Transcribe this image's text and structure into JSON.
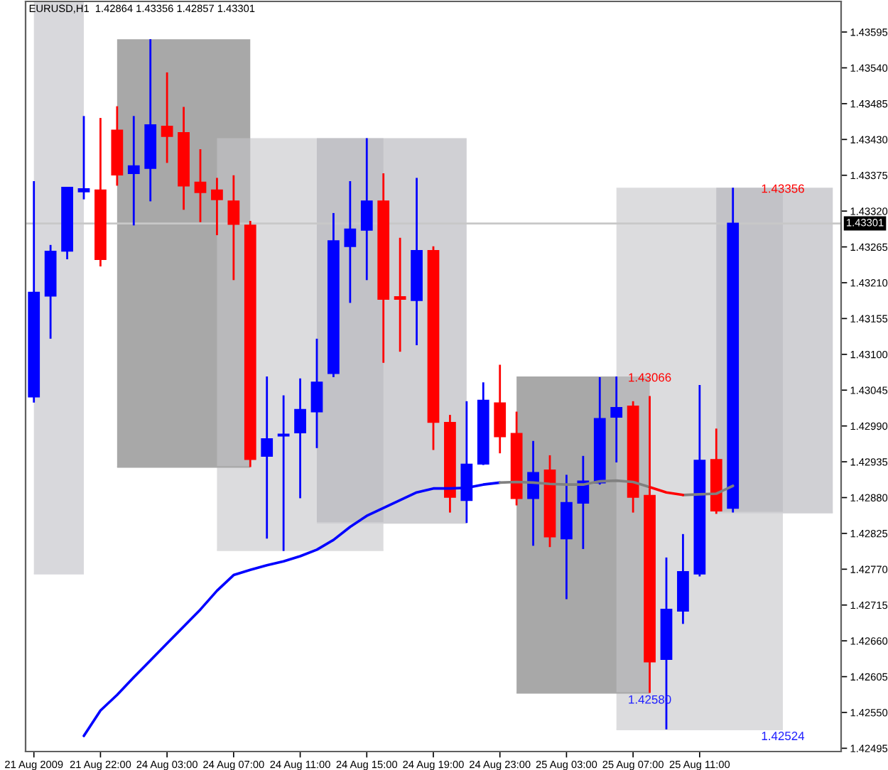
{
  "chart_data": {
    "type": "candlestick",
    "title": "EURUSD,H1  1.42864 1.43356 1.42857 1.43301",
    "categories": [
      "21 Aug 2009",
      null,
      null,
      null,
      "21 Aug 22:00",
      null,
      null,
      null,
      "24 Aug 03:00",
      null,
      null,
      null,
      "24 Aug 07:00",
      null,
      null,
      null,
      "24 Aug 11:00",
      null,
      null,
      null,
      "24 Aug 15:00",
      null,
      null,
      null,
      "24 Aug 19:00",
      null,
      null,
      null,
      "24 Aug 23:00",
      null,
      null,
      null,
      "25 Aug 03:00",
      null,
      null,
      null,
      "25 Aug 07:00",
      null,
      null,
      null,
      "25 Aug 11:00",
      null,
      null,
      null,
      null,
      null,
      null,
      null,
      null
    ],
    "ohlc": [
      [
        1.43035,
        1.43366,
        1.43026,
        1.43195
      ],
      [
        1.4319,
        1.43268,
        1.43124,
        1.43258
      ],
      [
        1.43259,
        1.43356,
        1.43246,
        1.43356
      ],
      [
        1.4335,
        1.43466,
        1.43338,
        1.43354
      ],
      [
        1.43352,
        1.43463,
        1.43235,
        1.43246
      ],
      [
        1.43444,
        1.43481,
        1.43359,
        1.43376
      ],
      [
        1.43378,
        1.43466,
        1.43298,
        1.43389
      ],
      [
        1.43386,
        1.43584,
        1.43335,
        1.43452
      ],
      [
        1.4345,
        1.43533,
        1.43394,
        1.43435
      ],
      [
        1.4344,
        1.4348,
        1.43322,
        1.43359
      ],
      [
        1.43364,
        1.43415,
        1.43303,
        1.43349
      ],
      [
        1.43352,
        1.43371,
        1.43283,
        1.43338
      ],
      [
        1.43335,
        1.43375,
        1.43214,
        1.433
      ],
      [
        1.43298,
        1.43305,
        1.42927,
        1.42939
      ],
      [
        1.42944,
        1.43066,
        1.42817,
        1.4297
      ],
      [
        1.42975,
        1.43037,
        1.42798,
        1.42977
      ],
      [
        1.4298,
        1.43063,
        1.42879,
        1.43015
      ],
      [
        1.43012,
        1.43124,
        1.42956,
        1.43057
      ],
      [
        1.43071,
        1.43317,
        1.43065,
        1.43274
      ],
      [
        1.43266,
        1.43366,
        1.43179,
        1.43292
      ],
      [
        1.43291,
        1.43432,
        1.43214,
        1.43335
      ],
      [
        1.43335,
        1.43378,
        1.43087,
        1.43185
      ],
      [
        1.43188,
        1.43279,
        1.43104,
        1.43185
      ],
      [
        1.43183,
        1.43371,
        1.43114,
        1.43259
      ],
      [
        1.43259,
        1.43266,
        1.42953,
        1.42996
      ],
      [
        1.42995,
        1.43007,
        1.42857,
        1.42881
      ],
      [
        1.42876,
        1.43028,
        1.42841,
        1.42931
      ],
      [
        1.42932,
        1.43057,
        1.4293,
        1.43029
      ],
      [
        1.43025,
        1.43084,
        1.42948,
        1.42974
      ],
      [
        1.42978,
        1.43012,
        1.42868,
        1.42879
      ],
      [
        1.42879,
        1.42967,
        1.42806,
        1.42918
      ],
      [
        1.42922,
        1.42945,
        1.42804,
        1.4282
      ],
      [
        1.42817,
        1.42915,
        1.42724,
        1.42872
      ],
      [
        1.42872,
        1.42944,
        1.42801,
        1.42905
      ],
      [
        1.42903,
        1.43065,
        1.429,
        1.43001
      ],
      [
        1.43004,
        1.43066,
        1.42934,
        1.43018
      ],
      [
        1.4302,
        1.43028,
        1.42857,
        1.42881
      ],
      [
        1.42883,
        1.43036,
        1.4258,
        1.42628
      ],
      [
        1.42632,
        1.42788,
        1.42524,
        1.42708
      ],
      [
        1.42706,
        1.42824,
        1.42686,
        1.42766
      ],
      [
        1.42763,
        1.43053,
        1.42759,
        1.42937
      ],
      [
        1.42938,
        1.42986,
        1.42855,
        1.4286
      ],
      [
        1.42864,
        1.43356,
        1.42857,
        1.43301
      ],
      null,
      null,
      null,
      null,
      null,
      null
    ],
    "colors": [
      "#0000ff",
      "#0000ff",
      "#0000ff",
      "#0000ff",
      "#ff0000",
      "#ff0000",
      "#0000ff",
      "#0000ff",
      "#ff0000",
      "#ff0000",
      "#ff0000",
      "#ff0000",
      "#ff0000",
      "#ff0000",
      "#0000ff",
      "#0000ff",
      "#0000ff",
      "#0000ff",
      "#0000ff",
      "#0000ff",
      "#0000ff",
      "#ff0000",
      "#ff0000",
      "#0000ff",
      "#ff0000",
      "#ff0000",
      "#0000ff",
      "#0000ff",
      "#ff0000",
      "#ff0000",
      "#0000ff",
      "#ff0000",
      "#0000ff",
      "#0000ff",
      "#0000ff",
      "#0000ff",
      "#ff0000",
      "#ff0000",
      "#0000ff",
      "#0000ff",
      "#0000ff",
      "#ff0000",
      "#0000ff",
      null,
      null,
      null,
      null,
      null,
      null
    ],
    "series": [
      {
        "type": "line",
        "color": "#d8d8dc",
        "values": [
          1.42763,
          1.42763,
          1.42763,
          1.42763,
          null,
          null,
          null,
          null,
          null,
          null,
          null,
          null,
          null,
          null,
          null,
          null,
          null,
          null,
          null,
          null,
          null,
          null,
          null,
          null,
          null,
          null,
          null,
          null,
          null,
          null,
          null,
          null,
          null,
          null,
          null,
          null,
          null,
          null,
          null,
          null,
          null,
          null,
          null,
          null,
          null,
          null,
          null,
          null,
          null
        ],
        "upper": [
          1.43642,
          1.43642,
          1.43642,
          1.43642,
          null,
          null,
          null,
          null,
          null,
          null,
          null,
          null,
          null,
          null,
          null,
          null,
          null,
          null,
          null,
          null,
          null,
          null,
          null,
          null,
          null,
          null,
          null,
          null,
          null,
          null,
          null,
          null,
          null,
          null,
          null,
          null,
          null,
          null,
          null,
          null,
          null,
          null,
          null,
          null,
          null,
          null,
          null,
          null,
          null
        ],
        "lower": [
          1.42763,
          1.42763,
          1.42763,
          1.42763,
          null,
          null,
          null,
          null,
          null,
          null,
          null,
          null,
          null,
          null,
          null,
          null,
          null,
          null,
          null,
          null,
          null,
          null,
          null,
          null,
          null,
          null,
          null,
          null,
          null,
          null,
          null,
          null,
          null,
          null,
          null,
          null,
          null,
          null,
          null,
          null,
          null,
          null,
          null,
          null,
          null,
          null,
          null,
          null,
          null
        ]
      },
      {
        "type": "line",
        "color": "#a8a8a8",
        "values": [
          null,
          null,
          null,
          null,
          null,
          1.42927,
          1.42927,
          1.42927,
          1.42927,
          1.42927,
          1.42927,
          1.42927,
          1.42927,
          1.42927,
          null,
          null,
          null,
          null,
          null,
          null,
          null,
          null,
          null,
          null,
          null,
          null,
          null,
          null,
          null,
          null,
          null,
          null,
          null,
          null,
          null,
          null,
          null,
          null,
          null,
          null,
          null,
          null,
          null,
          null,
          null,
          null,
          null,
          null,
          null
        ],
        "upper": [
          null,
          null,
          null,
          null,
          null,
          1.43584,
          1.43584,
          1.43584,
          1.43584,
          1.43584,
          1.43584,
          1.43584,
          1.43584,
          1.43584,
          null,
          null,
          null,
          null,
          null,
          null,
          null,
          null,
          null,
          null,
          null,
          null,
          null,
          null,
          null,
          null,
          null,
          null,
          null,
          null,
          null,
          null,
          null,
          null,
          null,
          null,
          null,
          null,
          null,
          null,
          null,
          null,
          null,
          null,
          null
        ],
        "lower": [
          null,
          null,
          null,
          null,
          null,
          1.42927,
          1.42927,
          1.42927,
          1.42927,
          1.42927,
          1.42927,
          1.42927,
          1.42927,
          1.42927,
          null,
          null,
          null,
          null,
          null,
          null,
          null,
          null,
          null,
          null,
          null,
          null,
          null,
          null,
          null,
          null,
          null,
          null,
          null,
          null,
          null,
          null,
          null,
          null,
          null,
          null,
          null,
          null,
          null,
          null,
          null,
          null,
          null,
          null,
          null
        ]
      },
      {
        "type": "line",
        "color": "#dcdcde",
        "values": [
          null,
          null,
          null,
          null,
          null,
          null,
          null,
          null,
          null,
          null,
          null,
          1.42799,
          1.42799,
          1.42799,
          1.42799,
          1.42799,
          1.42799,
          1.42799,
          1.42799,
          1.42799,
          1.42799,
          1.42799,
          null,
          null,
          null,
          null,
          null,
          null,
          null,
          null,
          null,
          null,
          null,
          null,
          null,
          null,
          null,
          null,
          null,
          null,
          null,
          null,
          null,
          null,
          null,
          null,
          null,
          null,
          null
        ],
        "upper": [
          null,
          null,
          null,
          null,
          null,
          null,
          null,
          null,
          null,
          null,
          null,
          1.43432,
          1.43432,
          1.43432,
          1.43432,
          1.43432,
          1.43432,
          1.43432,
          1.43432,
          1.43432,
          1.43432,
          1.43432,
          null,
          null,
          null,
          null,
          null,
          null,
          null,
          null,
          null,
          null,
          null,
          null,
          null,
          null,
          null,
          null,
          null,
          null,
          null,
          null,
          null,
          null,
          null,
          null,
          null,
          null,
          null
        ],
        "lower": [
          null,
          null,
          null,
          null,
          null,
          null,
          null,
          null,
          null,
          null,
          null,
          1.42799,
          1.42799,
          1.42799,
          1.42799,
          1.42799,
          1.42799,
          1.42799,
          1.42799,
          1.42799,
          1.42799,
          1.42799,
          null,
          null,
          null,
          null,
          null,
          null,
          null,
          null,
          null,
          null,
          null,
          null,
          null,
          null,
          null,
          null,
          null,
          null,
          null,
          null,
          null,
          null,
          null,
          null,
          null,
          null,
          null
        ]
      },
      {
        "type": "line",
        "color": "#d0d0d4",
        "values": [
          null,
          null,
          null,
          null,
          null,
          null,
          null,
          null,
          null,
          null,
          null,
          null,
          null,
          null,
          null,
          null,
          null,
          1.42841,
          1.42841,
          1.42841,
          1.42841,
          1.42841,
          1.42841,
          1.42841,
          1.42841,
          1.42841,
          1.42841,
          null,
          null,
          null,
          null,
          null,
          null,
          null,
          null,
          null,
          null,
          null,
          null,
          null,
          null,
          null,
          null,
          null,
          null,
          null,
          null,
          null,
          null
        ],
        "upper": [
          null,
          null,
          null,
          null,
          null,
          null,
          null,
          null,
          null,
          null,
          null,
          null,
          null,
          null,
          null,
          null,
          null,
          1.43432,
          1.43432,
          1.43432,
          1.43432,
          1.43432,
          1.43432,
          1.43432,
          1.43432,
          1.43432,
          1.43432,
          null,
          null,
          null,
          null,
          null,
          null,
          null,
          null,
          null,
          null,
          null,
          null,
          null,
          null,
          null,
          null,
          null,
          null,
          null,
          null,
          null,
          null
        ],
        "lower": [
          null,
          null,
          null,
          null,
          null,
          null,
          null,
          null,
          null,
          null,
          null,
          null,
          null,
          null,
          null,
          null,
          null,
          1.42841,
          1.42841,
          1.42841,
          1.42841,
          1.42841,
          1.42841,
          1.42841,
          1.42841,
          1.42841,
          1.42841,
          null,
          null,
          null,
          null,
          null,
          null,
          null,
          null,
          null,
          null,
          null,
          null,
          null,
          null,
          null,
          null,
          null,
          null,
          null,
          null,
          null,
          null
        ]
      },
      {
        "type": "line",
        "color": "#a8a8a8",
        "values": [
          null,
          null,
          null,
          null,
          null,
          null,
          null,
          null,
          null,
          null,
          null,
          null,
          null,
          null,
          null,
          null,
          null,
          null,
          null,
          null,
          null,
          null,
          null,
          null,
          null,
          null,
          null,
          null,
          null,
          1.4258,
          1.4258,
          1.4258,
          1.4258,
          1.4258,
          1.4258,
          1.4258,
          1.4258,
          1.4258,
          null,
          null,
          null,
          null,
          null,
          null,
          null,
          null,
          null,
          null,
          null
        ],
        "upper": [
          null,
          null,
          null,
          null,
          null,
          null,
          null,
          null,
          null,
          null,
          null,
          null,
          null,
          null,
          null,
          null,
          null,
          null,
          null,
          null,
          null,
          null,
          null,
          null,
          null,
          null,
          null,
          null,
          null,
          1.43066,
          1.43066,
          1.43066,
          1.43066,
          1.43066,
          1.43066,
          1.43066,
          1.43066,
          1.43066,
          null,
          null,
          null,
          null,
          null,
          null,
          null,
          null,
          null,
          null,
          null
        ],
        "lower": [
          null,
          null,
          null,
          null,
          null,
          null,
          null,
          null,
          null,
          null,
          null,
          null,
          null,
          null,
          null,
          null,
          null,
          null,
          null,
          null,
          null,
          null,
          null,
          null,
          null,
          null,
          null,
          null,
          null,
          1.4258,
          1.4258,
          1.4258,
          1.4258,
          1.4258,
          1.4258,
          1.4258,
          1.4258,
          1.4258,
          null,
          null,
          null,
          null,
          null,
          null,
          null,
          null,
          null,
          null,
          null
        ]
      },
      {
        "type": "line",
        "color": "#dcdcde",
        "values": [
          null,
          null,
          null,
          null,
          null,
          null,
          null,
          null,
          null,
          null,
          null,
          null,
          null,
          null,
          null,
          null,
          null,
          null,
          null,
          null,
          null,
          null,
          null,
          null,
          null,
          null,
          null,
          null,
          null,
          null,
          null,
          null,
          null,
          null,
          null,
          1.42524,
          1.42524,
          1.42524,
          1.42524,
          1.42524,
          1.42524,
          1.42524,
          1.42524,
          1.42524,
          1.42524,
          1.42524,
          null,
          null,
          null
        ],
        "upper": [
          null,
          null,
          null,
          null,
          null,
          null,
          null,
          null,
          null,
          null,
          null,
          null,
          null,
          null,
          null,
          null,
          null,
          null,
          null,
          null,
          null,
          null,
          null,
          null,
          null,
          null,
          null,
          null,
          null,
          null,
          null,
          null,
          null,
          null,
          null,
          1.43356,
          1.43356,
          1.43356,
          1.43356,
          1.43356,
          1.43356,
          1.43356,
          1.43356,
          1.43356,
          1.43356,
          1.43356,
          null,
          null,
          null
        ],
        "lower": [
          null,
          null,
          null,
          null,
          null,
          null,
          null,
          null,
          null,
          null,
          null,
          null,
          null,
          null,
          null,
          null,
          null,
          null,
          null,
          null,
          null,
          null,
          null,
          null,
          null,
          null,
          null,
          null,
          null,
          null,
          null,
          null,
          null,
          null,
          null,
          1.42524,
          1.42524,
          1.42524,
          1.42524,
          1.42524,
          1.42524,
          1.42524,
          1.42524,
          1.42524,
          1.42524,
          1.42524,
          null,
          null,
          null
        ]
      },
      {
        "type": "line",
        "color": "#d0d0d4",
        "values": [
          null,
          null,
          null,
          null,
          null,
          null,
          null,
          null,
          null,
          null,
          null,
          null,
          null,
          null,
          null,
          null,
          null,
          null,
          null,
          null,
          null,
          null,
          null,
          null,
          null,
          null,
          null,
          null,
          null,
          null,
          null,
          null,
          null,
          null,
          null,
          null,
          null,
          null,
          null,
          null,
          null,
          1.42857,
          1.42857,
          1.42857,
          1.42857,
          1.42857,
          1.42857,
          1.42857,
          1.42857
        ],
        "upper": [
          null,
          null,
          null,
          null,
          null,
          null,
          null,
          null,
          null,
          null,
          null,
          null,
          null,
          null,
          null,
          null,
          null,
          null,
          null,
          null,
          null,
          null,
          null,
          null,
          null,
          null,
          null,
          null,
          null,
          null,
          null,
          null,
          null,
          null,
          null,
          null,
          null,
          null,
          null,
          null,
          null,
          1.43356,
          1.43356,
          1.43356,
          1.43356,
          1.43356,
          1.43356,
          1.43356,
          1.43356
        ],
        "lower": [
          null,
          null,
          null,
          null,
          null,
          null,
          null,
          null,
          null,
          null,
          null,
          null,
          null,
          null,
          null,
          null,
          null,
          null,
          null,
          null,
          null,
          null,
          null,
          null,
          null,
          null,
          null,
          null,
          null,
          null,
          null,
          null,
          null,
          null,
          null,
          null,
          null,
          null,
          null,
          null,
          null,
          1.42857,
          1.42857,
          1.42857,
          1.42857,
          1.42857,
          1.42857,
          1.42857,
          1.42857
        ]
      },
      {
        "type": "line",
        "color": "#0000ff",
        "values": [
          null,
          null,
          null,
          1.42514,
          1.42553,
          1.42577,
          1.42604,
          1.4263,
          1.42656,
          1.42682,
          1.42708,
          1.42737,
          1.42761,
          1.42769,
          1.42776,
          1.42782,
          1.4279,
          1.428,
          1.42815,
          1.42835,
          1.42852,
          1.42864,
          1.42876,
          1.42888,
          1.42894,
          1.42894,
          1.42895,
          1.429,
          1.42903,
          null,
          null,
          null,
          null,
          null,
          null,
          null,
          null,
          null,
          null,
          null,
          null,
          null,
          null,
          null,
          null,
          null,
          null,
          null,
          null
        ]
      },
      {
        "type": "line",
        "color": "#808080",
        "values": [
          null,
          null,
          null,
          null,
          null,
          null,
          null,
          null,
          null,
          null,
          null,
          null,
          null,
          null,
          null,
          null,
          null,
          null,
          null,
          null,
          null,
          null,
          null,
          null,
          null,
          null,
          null,
          null,
          1.42903,
          1.42904,
          1.42903,
          1.42901,
          1.429,
          1.429,
          1.42905,
          1.42906,
          1.42904,
          1.42896,
          null,
          1.42884,
          1.42885,
          1.42886,
          1.42898,
          null,
          null,
          null,
          null,
          null,
          null
        ]
      },
      {
        "type": "line",
        "color": "#ff0000",
        "values": [
          null,
          null,
          null,
          null,
          null,
          null,
          null,
          null,
          null,
          null,
          null,
          null,
          null,
          null,
          null,
          null,
          null,
          null,
          null,
          null,
          null,
          null,
          null,
          null,
          null,
          null,
          null,
          null,
          null,
          null,
          null,
          null,
          null,
          null,
          null,
          null,
          null,
          1.42896,
          1.42888,
          1.42884,
          null,
          null,
          null,
          null,
          null,
          null,
          null,
          null,
          null
        ]
      }
    ],
    "ylim": [
      1.4249,
      1.43642
    ],
    "yticks": [
      1.42495,
      {
        "value": 1.4255,
        "label": "1.42550"
      },
      1.42605,
      {
        "value": 1.4266,
        "label": "1.42660"
      },
      1.42715,
      {
        "value": 1.4277,
        "label": "1.42770"
      },
      1.42825,
      {
        "value": 1.4288,
        "label": "1.42880"
      },
      1.42935,
      {
        "value": 1.4299,
        "label": "1.42990"
      },
      1.43045,
      {
        "value": 1.431,
        "label": "1.43100"
      },
      1.43155,
      {
        "value": 1.4321,
        "label": "1.43210"
      },
      1.43265,
      {
        "value": 1.4332,
        "label": "1.43320"
      },
      1.43375,
      {
        "value": 1.4343,
        "label": "1.43430"
      },
      1.43485,
      {
        "value": 1.4354,
        "label": "1.43540"
      },
      1.43595
    ],
    "ref_lines": [
      {
        "axis": "y",
        "value": 1.43301,
        "label": "1.43301",
        "color": "#c8c8c8"
      }
    ],
    "annotations": [
      {
        "text": "1.43356",
        "y": 1.43356
      },
      {
        "text": "1.43066",
        "y": 1.43066
      },
      {
        "text": "1.42580",
        "y": 1.4258
      },
      {
        "text": "1.42524",
        "y": 1.42524
      }
    ]
  }
}
